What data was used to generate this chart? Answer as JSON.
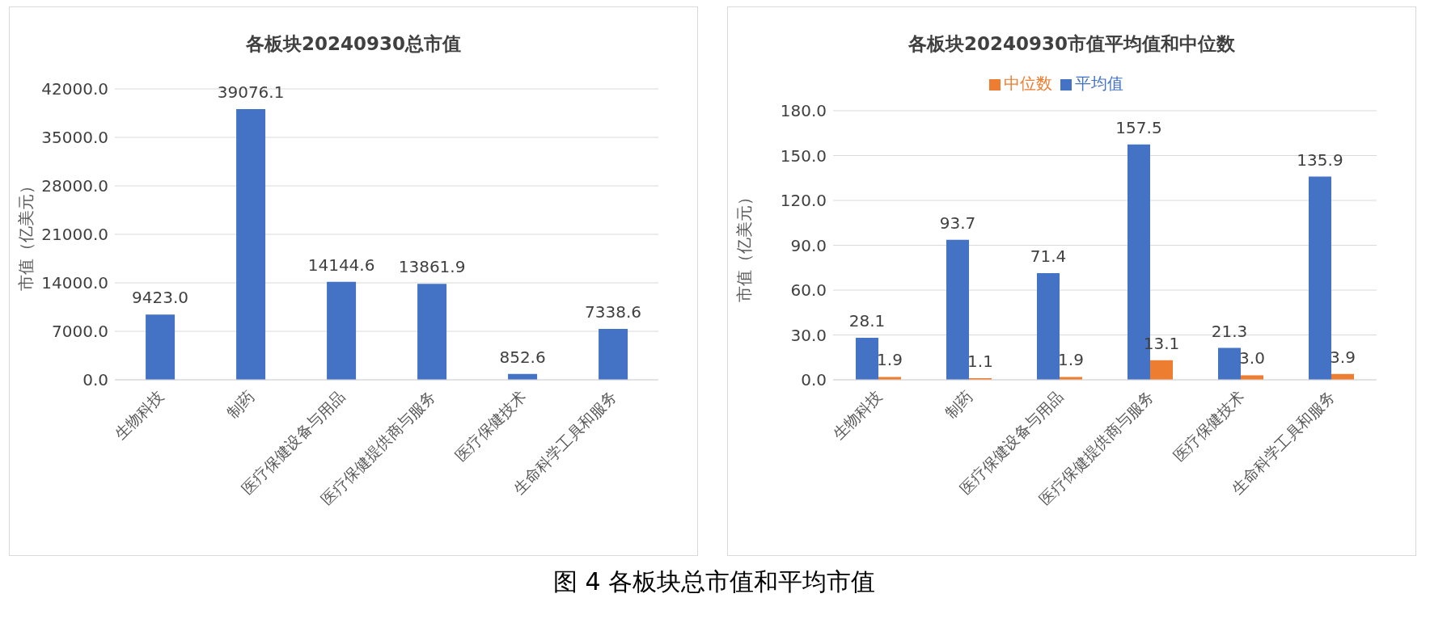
{
  "chart_data": [
    {
      "type": "bar",
      "title": "各板块20240930总市值",
      "ylabel": "市值（亿美元）",
      "categories": [
        "生物科技",
        "制药",
        "医疗保健设备与用品",
        "医疗保健提供商与服务",
        "医疗保健技术",
        "生命科学工具和服务"
      ],
      "values": [
        9423.0,
        39076.1,
        14144.6,
        13861.9,
        852.6,
        7338.6
      ],
      "value_labels": [
        "9423.0",
        "39076.1",
        "14144.6",
        "13861.9",
        "852.6",
        "7338.6"
      ],
      "color": "#4472c4",
      "ylim": [
        0,
        42000
      ],
      "yticks": [
        {
          "value": 0,
          "label": "0.0"
        },
        {
          "value": 7000,
          "label": "7000.0"
        },
        {
          "value": 14000,
          "label": "14000.0"
        },
        {
          "value": 21000,
          "label": "21000.0"
        },
        {
          "value": 28000,
          "label": "28000.0"
        },
        {
          "value": 35000,
          "label": "35000.0"
        },
        {
          "value": 42000,
          "label": "42000.0"
        }
      ],
      "grid": "y",
      "legend": false,
      "annotations": [
        "图 4  各板块总市值和平均市值"
      ]
    },
    {
      "type": "bar",
      "title": "各板块20240930市值平均值和中位数",
      "ylabel": "市值（亿美元）",
      "categories": [
        "生物科技",
        "制药",
        "医疗保健设备与用品",
        "医疗保健提供商与服务",
        "医疗保健技术",
        "生命科学工具和服务"
      ],
      "series": [
        {
          "name": "平均值",
          "color": "#4472c4",
          "values": [
            28.1,
            93.7,
            71.4,
            157.5,
            21.3,
            135.9
          ],
          "value_labels": [
            "28.1",
            "93.7",
            "71.4",
            "157.5",
            "21.3",
            "135.9"
          ]
        },
        {
          "name": "中位数",
          "color": "#ed7d31",
          "values": [
            1.9,
            1.1,
            1.9,
            13.1,
            3.0,
            3.9
          ],
          "value_labels": [
            "1.9",
            "1.1",
            "1.9",
            "13.1",
            "3.0",
            "3.9"
          ]
        }
      ],
      "ylim": [
        0,
        180
      ],
      "yticks": [
        {
          "value": 0,
          "label": "0.0"
        },
        {
          "value": 30,
          "label": "30.0"
        },
        {
          "value": 60,
          "label": "60.0"
        },
        {
          "value": 90,
          "label": "90.0"
        },
        {
          "value": 120,
          "label": "120.0"
        },
        {
          "value": 150,
          "label": "150.0"
        },
        {
          "value": 180,
          "label": "180.0"
        }
      ],
      "grid": "y",
      "legend": "top"
    }
  ]
}
